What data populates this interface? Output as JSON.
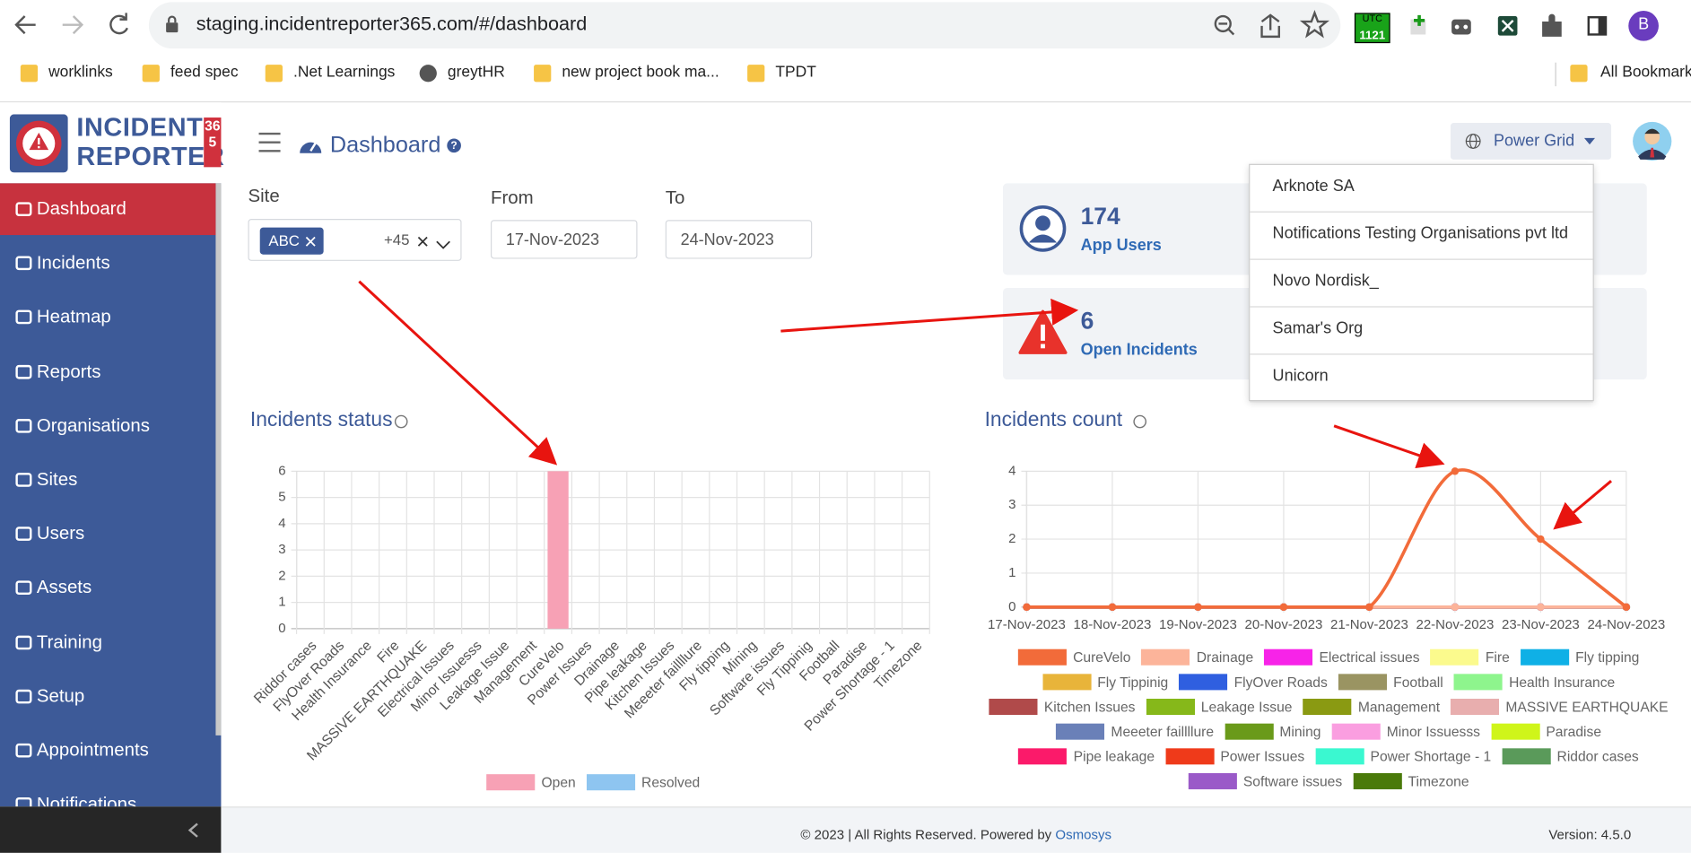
{
  "browser": {
    "url": "staging.incidentreporter365.com/#/dashboard",
    "bookmarks": [
      "worklinks",
      "feed spec",
      ".Net Learnings",
      "greytHR",
      "new project book ma...",
      "TPDT"
    ],
    "all_bookmarks": "All Bookmarks",
    "extension_badge": [
      "UTC",
      "1121"
    ],
    "profile": "B"
  },
  "logo": {
    "line1": "INCIDENT",
    "line2": "REPORTER",
    "badge": "365"
  },
  "sidebar": [
    "Dashboard",
    "Incidents",
    "Heatmap",
    "Reports",
    "Organisations",
    "Sites",
    "Users",
    "Assets",
    "Training",
    "Setup",
    "Appointments",
    "Notifications"
  ],
  "header": {
    "title": "Dashboard",
    "organisation": "Power Grid"
  },
  "organisation_menu": [
    "Arknote SA",
    "Notifications Testing Organisations pvt ltd",
    "Novo Nordisk_",
    "Samar's Org",
    "Unicorn"
  ],
  "filters": {
    "site_label": "Site",
    "site_chip": "ABC",
    "site_more": "+45",
    "from_label": "From",
    "from": "17-Nov-2023",
    "to_label": "To",
    "to": "24-Nov-2023"
  },
  "stats": [
    {
      "value": 174,
      "label": "App Users"
    },
    {
      "value": 6,
      "label": "Open Incidents"
    }
  ],
  "chart_data": [
    {
      "type": "bar",
      "title": "Incidents status",
      "categories": [
        "Riddor cases",
        "FlyOver Roads",
        "Health Insurance",
        "Fire",
        "MASSIVE EARTHQUAKE",
        "Electrical Issues",
        "Minor Issuesss",
        "Leakage Issue",
        "Management",
        "CureVelo",
        "Power Issues",
        "Drainage",
        "Pipe leakage",
        "Kitchen Issues",
        "Meeeter faillllure",
        "Fly tipping",
        "Mining",
        "Software issues",
        "Fly Tippinig",
        "Football",
        "Paradise",
        "Power Shortage - 1",
        "Timezone"
      ],
      "series": [
        {
          "name": "Open",
          "color": "#f7a1b5",
          "values": [
            0,
            0,
            0,
            0,
            0,
            0,
            0,
            0,
            0,
            6,
            0,
            0,
            0,
            0,
            0,
            0,
            0,
            0,
            0,
            0,
            0,
            0,
            0
          ]
        },
        {
          "name": "Resolved",
          "color": "#8ec5f0",
          "values": [
            0,
            0,
            0,
            0,
            0,
            0,
            0,
            0,
            0,
            0,
            0,
            0,
            0,
            0,
            0,
            0,
            0,
            0,
            0,
            0,
            0,
            0,
            0
          ]
        }
      ],
      "ylim": [
        0,
        6
      ],
      "yticks": [
        0,
        1,
        2,
        3,
        4,
        5,
        6
      ],
      "grid": true,
      "stacked": true
    },
    {
      "type": "line",
      "title": "Incidents count",
      "x": [
        "17-Nov-2023",
        "18-Nov-2023",
        "19-Nov-2023",
        "20-Nov-2023",
        "21-Nov-2023",
        "22-Nov-2023",
        "23-Nov-2023",
        "24-Nov-2023"
      ],
      "series": [
        {
          "name": "CureVelo",
          "color": "#f26b3a",
          "values": [
            0,
            0,
            0,
            0,
            0,
            4,
            2,
            0
          ]
        },
        {
          "name": "Drainage",
          "color": "#fcb49a",
          "values": [
            0,
            0,
            0,
            0,
            0,
            0,
            0,
            0
          ]
        },
        {
          "name": "Electrical issues",
          "color": "#f723e8",
          "values": [
            0,
            0,
            0,
            0,
            0,
            0,
            0,
            0
          ]
        },
        {
          "name": "Fire",
          "color": "#fbfa8d",
          "values": [
            0,
            0,
            0,
            0,
            0,
            0,
            0,
            0
          ]
        },
        {
          "name": "Fly tipping",
          "color": "#0fb0e6",
          "values": [
            0,
            0,
            0,
            0,
            0,
            0,
            0,
            0
          ]
        },
        {
          "name": "Fly Tippinig",
          "color": "#e8b43a",
          "values": [
            0,
            0,
            0,
            0,
            0,
            0,
            0,
            0
          ]
        },
        {
          "name": "FlyOver Roads",
          "color": "#2f5fe0",
          "values": [
            0,
            0,
            0,
            0,
            0,
            0,
            0,
            0
          ]
        },
        {
          "name": "Football",
          "color": "#9a9462",
          "values": [
            0,
            0,
            0,
            0,
            0,
            0,
            0,
            0
          ]
        },
        {
          "name": "Health Insurance",
          "color": "#8ef58d",
          "values": [
            0,
            0,
            0,
            0,
            0,
            0,
            0,
            0
          ]
        },
        {
          "name": "Kitchen Issues",
          "color": "#b04a4a",
          "values": [
            0,
            0,
            0,
            0,
            0,
            0,
            0,
            0
          ]
        },
        {
          "name": "Leakage Issue",
          "color": "#86b81a",
          "values": [
            0,
            0,
            0,
            0,
            0,
            0,
            0,
            0
          ]
        },
        {
          "name": "Management",
          "color": "#8a9a12",
          "values": [
            0,
            0,
            0,
            0,
            0,
            0,
            0,
            0
          ]
        },
        {
          "name": "MASSIVE EARTHQUAKE",
          "color": "#e8aeae",
          "values": [
            0,
            0,
            0,
            0,
            0,
            0,
            0,
            0
          ]
        },
        {
          "name": "Meeeter faillllure",
          "color": "#6a80b8",
          "values": [
            0,
            0,
            0,
            0,
            0,
            0,
            0,
            0
          ]
        },
        {
          "name": "Mining",
          "color": "#6a9a1a",
          "values": [
            0,
            0,
            0,
            0,
            0,
            0,
            0,
            0
          ]
        },
        {
          "name": "Minor Issuesss",
          "color": "#fa9ee0",
          "values": [
            0,
            0,
            0,
            0,
            0,
            0,
            0,
            0
          ]
        },
        {
          "name": "Paradise",
          "color": "#cff51a",
          "values": [
            0,
            0,
            0,
            0,
            0,
            0,
            0,
            0
          ]
        },
        {
          "name": "Pipe leakage",
          "color": "#fb1a6a",
          "values": [
            0,
            0,
            0,
            0,
            0,
            0,
            0,
            0
          ]
        },
        {
          "name": "Power Issues",
          "color": "#ef3a1a",
          "values": [
            0,
            0,
            0,
            0,
            0,
            0,
            0,
            0
          ]
        },
        {
          "name": "Power Shortage - 1",
          "color": "#3af8d0",
          "values": [
            0,
            0,
            0,
            0,
            0,
            0,
            0,
            0
          ]
        },
        {
          "name": "Riddor cases",
          "color": "#5a9a5a",
          "values": [
            0,
            0,
            0,
            0,
            0,
            0,
            0,
            0
          ]
        },
        {
          "name": "Software issues",
          "color": "#9a5ac8",
          "values": [
            0,
            0,
            0,
            0,
            0,
            0,
            0,
            0
          ]
        },
        {
          "name": "Timezone",
          "color": "#4a7a0a",
          "values": [
            0,
            0,
            0,
            0,
            0,
            0,
            0,
            0
          ]
        }
      ],
      "ylim": [
        0,
        4
      ],
      "yticks": [
        0,
        1,
        2,
        3,
        4
      ],
      "grid": true
    }
  ],
  "footer": {
    "copyright": "© 2023 | All Rights Reserved. Powered by",
    "link": "Osmosys",
    "version": "Version: 4.5.0"
  }
}
